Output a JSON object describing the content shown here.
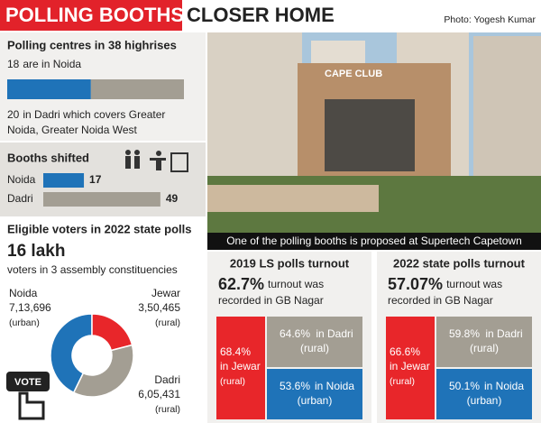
{
  "header": {
    "title_red": "POLLING BOOTHS",
    "title_black": "CLOSER HOME",
    "credit": "Photo: Yogesh Kumar"
  },
  "photo_caption": "One of the polling booths is proposed at Supertech Capetown",
  "photo_sign": "CAPE CLUB",
  "chart_data": [
    {
      "type": "stacked-bar",
      "title": "Polling centres in 38 highrises",
      "values": [
        18,
        20
      ],
      "colors": [
        "#1f73b8",
        "#a39e93"
      ],
      "texts": [
        [
          "are in Noida"
        ],
        [
          "in Dadri which covers Greater",
          "Noida, Greater Noida West"
        ]
      ]
    },
    {
      "type": "bar",
      "title": "Booths shifted",
      "categories": [
        "Noida",
        "Dadri"
      ],
      "values": [
        17,
        49
      ],
      "colors": [
        "#1f73b8",
        "#a39e93"
      ]
    },
    {
      "type": "donut",
      "title": "Eligible voters in 2022 state polls",
      "total": "16 lakh",
      "subtitle": "voters in 3 assembly constituencies",
      "categories": [
        "Noida",
        "Jewar",
        "Dadri"
      ],
      "values": [
        713696,
        350465,
        605431
      ],
      "value_labels": [
        "7,13,696",
        "3,50,465",
        "6,05,431"
      ],
      "notes": [
        "(urban)",
        "(rural)",
        "(rural)"
      ],
      "colors": [
        "#1f73b8",
        "#e8262a",
        "#a39e93"
      ],
      "icon": "VOTE"
    },
    {
      "type": "tiles",
      "title": "2019 LS polls turnout",
      "headline": "62.7%",
      "headline_text": [
        "turnout was",
        "recorded in GB Nagar"
      ],
      "labels": [
        "68.4%",
        "64.6%",
        "53.6%"
      ],
      "categories": [
        "in Jewar",
        "in Dadri",
        "in Noida"
      ],
      "notes": [
        "(rural)",
        "(rural)",
        "(urban)"
      ],
      "colors": [
        "#e8262a",
        "#a39e93",
        "#1f73b8"
      ]
    },
    {
      "type": "tiles",
      "title": "2022 state polls turnout",
      "headline": "57.07%",
      "headline_text": [
        "turnout was",
        "recorded in GB Nagar"
      ],
      "labels": [
        "66.6%",
        "59.8%",
        "50.1%"
      ],
      "categories": [
        "in Jewar",
        "in Dadri",
        "in Noida"
      ],
      "notes": [
        "(rural)",
        "(rural)",
        "(urban)"
      ],
      "colors": [
        "#e8262a",
        "#a39e93",
        "#1f73b8"
      ]
    }
  ]
}
